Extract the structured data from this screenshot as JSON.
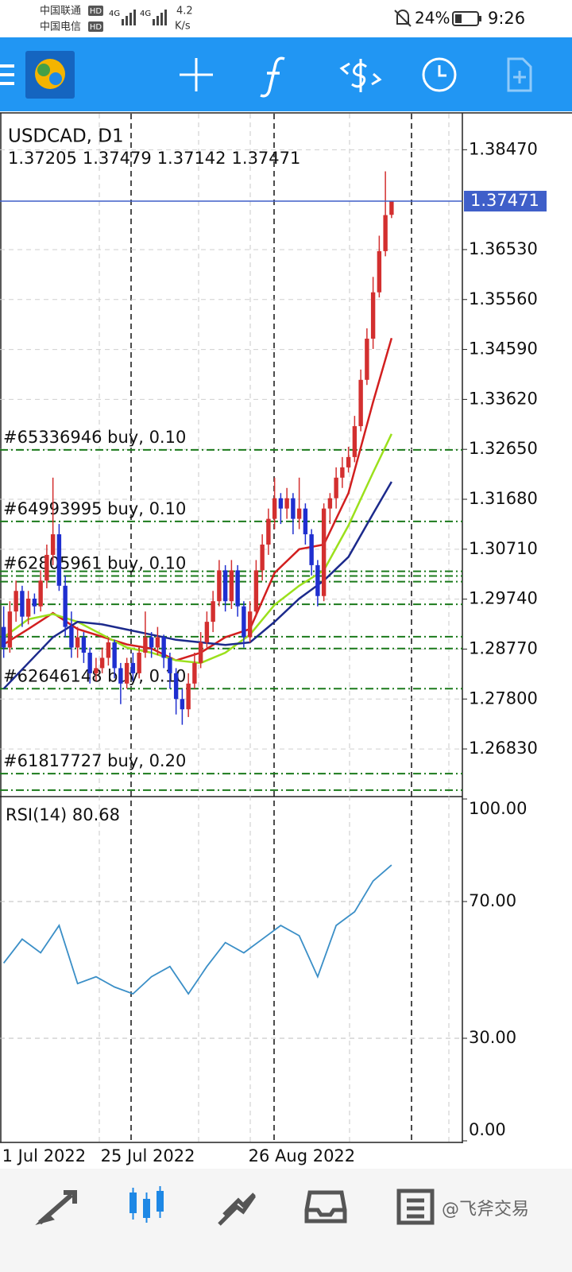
{
  "status_bar": {
    "carrier1": "中国联通",
    "carrier2": "中国电信",
    "badge": "HD",
    "network": "4G",
    "speed": "4.2",
    "speed_unit": "K/s",
    "battery": "24%",
    "time": "9:26"
  },
  "chart_data": [
    {
      "type": "candlestick",
      "title": "USDCAD, D1",
      "up_color": "#d32f2f",
      "down_color": "#1f2fd0",
      "bid_color": "#3f5fc9",
      "xlim": [
        -0.6,
        74.5
      ],
      "ylim": [
        1.2592,
        1.3917
      ],
      "yticks": [
        {
          "value": 1.3847,
          "label": "1.38470"
        },
        {
          "value": 1.3653,
          "label": "1.36530"
        },
        {
          "value": 1.3556,
          "label": "1.35560"
        },
        {
          "value": 1.3459,
          "label": "1.34590"
        },
        {
          "value": 1.3362,
          "label": "1.33620"
        },
        {
          "value": 1.3265,
          "label": "1.32650"
        },
        {
          "value": 1.3168,
          "label": "1.31680"
        },
        {
          "value": 1.3071,
          "label": "1.30710"
        },
        {
          "value": 1.2974,
          "label": "1.29740"
        },
        {
          "value": 1.2877,
          "label": "1.28770"
        },
        {
          "value": 1.278,
          "label": "1.27800"
        },
        {
          "value": 1.2683,
          "label": "1.26830"
        }
      ],
      "date_ticks": [
        {
          "value": 0,
          "label": "1 Jul 2022"
        },
        {
          "value": 16,
          "label": "25 Jul 2022"
        },
        {
          "value": 40,
          "label": "26 Aug 2022"
        }
      ],
      "ohlc": [
        [
          1.292,
          1.296,
          1.286,
          1.288
        ],
        [
          1.288,
          1.297,
          1.287,
          1.295
        ],
        [
          1.295,
          1.301,
          1.293,
          1.299
        ],
        [
          1.299,
          1.3,
          1.292,
          1.294
        ],
        [
          1.294,
          1.299,
          1.2925,
          1.2975
        ],
        [
          1.2975,
          1.2985,
          1.2945,
          1.296
        ],
        [
          1.296,
          1.303,
          1.295,
          1.301
        ],
        [
          1.301,
          1.308,
          1.2995,
          1.306
        ],
        [
          1.306,
          1.321,
          1.304,
          1.31
        ],
        [
          1.31,
          1.312,
          1.299,
          1.3
        ],
        [
          1.3,
          1.302,
          1.29,
          1.292
        ],
        [
          1.292,
          1.295,
          1.286,
          1.288
        ],
        [
          1.288,
          1.292,
          1.286,
          1.29
        ],
        [
          1.29,
          1.291,
          1.285,
          1.287
        ],
        [
          1.287,
          1.288,
          1.281,
          1.283
        ],
        [
          1.283,
          1.286,
          1.2815,
          1.284
        ],
        [
          1.284,
          1.288,
          1.283,
          1.286
        ],
        [
          1.286,
          1.29,
          1.2845,
          1.289
        ],
        [
          1.289,
          1.2895,
          1.282,
          1.284
        ],
        [
          1.284,
          1.285,
          1.277,
          1.281
        ],
        [
          1.281,
          1.286,
          1.28,
          1.285
        ],
        [
          1.285,
          1.287,
          1.2815,
          1.283
        ],
        [
          1.283,
          1.288,
          1.282,
          1.287
        ],
        [
          1.287,
          1.295,
          1.286,
          1.29
        ],
        [
          1.29,
          1.291,
          1.286,
          1.288
        ],
        [
          1.288,
          1.292,
          1.2865,
          1.29
        ],
        [
          1.29,
          1.2905,
          1.284,
          1.286
        ],
        [
          1.286,
          1.287,
          1.28,
          1.283
        ],
        [
          1.283,
          1.284,
          1.275,
          1.278
        ],
        [
          1.278,
          1.28,
          1.273,
          1.276
        ],
        [
          1.276,
          1.283,
          1.2745,
          1.281
        ],
        [
          1.281,
          1.287,
          1.28,
          1.285
        ],
        [
          1.285,
          1.291,
          1.284,
          1.289
        ],
        [
          1.289,
          1.295,
          1.288,
          1.293
        ],
        [
          1.293,
          1.299,
          1.291,
          1.297
        ],
        [
          1.297,
          1.305,
          1.296,
          1.303
        ],
        [
          1.303,
          1.304,
          1.295,
          1.297
        ],
        [
          1.297,
          1.305,
          1.2955,
          1.303
        ],
        [
          1.303,
          1.304,
          1.294,
          1.296
        ],
        [
          1.296,
          1.297,
          1.288,
          1.29
        ],
        [
          1.29,
          1.297,
          1.289,
          1.295
        ],
        [
          1.295,
          1.305,
          1.294,
          1.303
        ],
        [
          1.303,
          1.31,
          1.301,
          1.308
        ],
        [
          1.308,
          1.315,
          1.306,
          1.313
        ],
        [
          1.313,
          1.321,
          1.311,
          1.317
        ],
        [
          1.317,
          1.318,
          1.312,
          1.315
        ],
        [
          1.315,
          1.319,
          1.313,
          1.317
        ],
        [
          1.317,
          1.318,
          1.31,
          1.313
        ],
        [
          1.313,
          1.321,
          1.311,
          1.315
        ],
        [
          1.315,
          1.316,
          1.308,
          1.31
        ],
        [
          1.31,
          1.311,
          1.302,
          1.304
        ],
        [
          1.304,
          1.305,
          1.296,
          1.298
        ],
        [
          1.298,
          1.316,
          1.297,
          1.315
        ],
        [
          1.315,
          1.318,
          1.312,
          1.317
        ],
        [
          1.317,
          1.323,
          1.315,
          1.321
        ],
        [
          1.321,
          1.325,
          1.319,
          1.323
        ],
        [
          1.323,
          1.327,
          1.322,
          1.325
        ],
        [
          1.325,
          1.333,
          1.324,
          1.331
        ],
        [
          1.331,
          1.342,
          1.33,
          1.34
        ],
        [
          1.34,
          1.35,
          1.339,
          1.348
        ],
        [
          1.348,
          1.36,
          1.346,
          1.357
        ],
        [
          1.357,
          1.368,
          1.356,
          1.365
        ],
        [
          1.365,
          1.3805,
          1.364,
          1.372
        ],
        [
          1.37205,
          1.37479,
          1.37142,
          1.37471
        ]
      ],
      "moving_averages": [
        {
          "color": "#d21f1f",
          "x": [
            0,
            4,
            8,
            12,
            16,
            20,
            24,
            28,
            32,
            36,
            40,
            44,
            48,
            52,
            56,
            60,
            63
          ],
          "values": [
            1.2886,
            1.2916,
            1.2947,
            1.2916,
            1.2901,
            1.2886,
            1.2878,
            1.2855,
            1.287,
            1.29,
            1.2916,
            1.3025,
            1.3071,
            1.308,
            1.318,
            1.3357,
            1.3481
          ]
        },
        {
          "color": "#9be01c",
          "x": [
            0,
            4,
            8,
            12,
            16,
            20,
            24,
            28,
            32,
            36,
            40,
            44,
            48,
            52,
            56,
            60,
            63
          ],
          "values": [
            1.29,
            1.2935,
            1.2945,
            1.293,
            1.2905,
            1.288,
            1.287,
            1.2855,
            1.285,
            1.287,
            1.2905,
            1.2963,
            1.3,
            1.303,
            1.3117,
            1.322,
            1.3295
          ]
        },
        {
          "color": "#1c2a8c",
          "x": [
            0,
            4,
            8,
            12,
            16,
            20,
            24,
            28,
            32,
            36,
            40,
            44,
            48,
            52,
            56,
            60,
            63
          ],
          "values": [
            1.28,
            1.285,
            1.29,
            1.293,
            1.2925,
            1.2915,
            1.2905,
            1.2895,
            1.289,
            1.2885,
            1.289,
            1.293,
            1.2975,
            1.301,
            1.3056,
            1.314,
            1.3202
          ]
        }
      ],
      "orders": [
        {
          "label": "#65336946 buy, 0.10",
          "price": 1.3264
        },
        {
          "label": "#64993995 buy, 0.10",
          "price": 1.3125
        },
        {
          "price": 1.3028
        },
        {
          "label": "#62805961 buy, 0.10",
          "price": 1.3019
        },
        {
          "price": 1.3008
        },
        {
          "price": 1.2964
        },
        {
          "price": 1.2901
        },
        {
          "price": 1.2878
        },
        {
          "label": "#62646148 buy, 0.10",
          "price": 1.28
        },
        {
          "label": "#61817727 buy, 0.20",
          "price": 1.2635
        },
        {
          "price": 1.2603
        }
      ],
      "order_color": "#1b7a1b"
    },
    {
      "type": "line",
      "title": "RSI(14) 80.68",
      "color": "#3b8fc7",
      "xlim": [
        -0.6,
        74.5
      ],
      "ylim": [
        0,
        100
      ],
      "yticks": [
        {
          "value": 100,
          "label": "100.00"
        },
        {
          "value": 70,
          "label": "70.00"
        },
        {
          "value": 30,
          "label": "30.00"
        },
        {
          "value": 0,
          "label": "0.00"
        }
      ],
      "x": [
        0,
        3,
        6,
        9,
        12,
        15,
        18,
        21,
        24,
        27,
        30,
        33,
        36,
        39,
        42,
        45,
        48,
        51,
        54,
        57,
        60,
        63
      ],
      "values": [
        52,
        59,
        55,
        63,
        46,
        48,
        45,
        43,
        48,
        51,
        43,
        51,
        58,
        55,
        59,
        63,
        60,
        48,
        63,
        67,
        76,
        80.68
      ]
    }
  ],
  "watermark": "@飞斧交易"
}
